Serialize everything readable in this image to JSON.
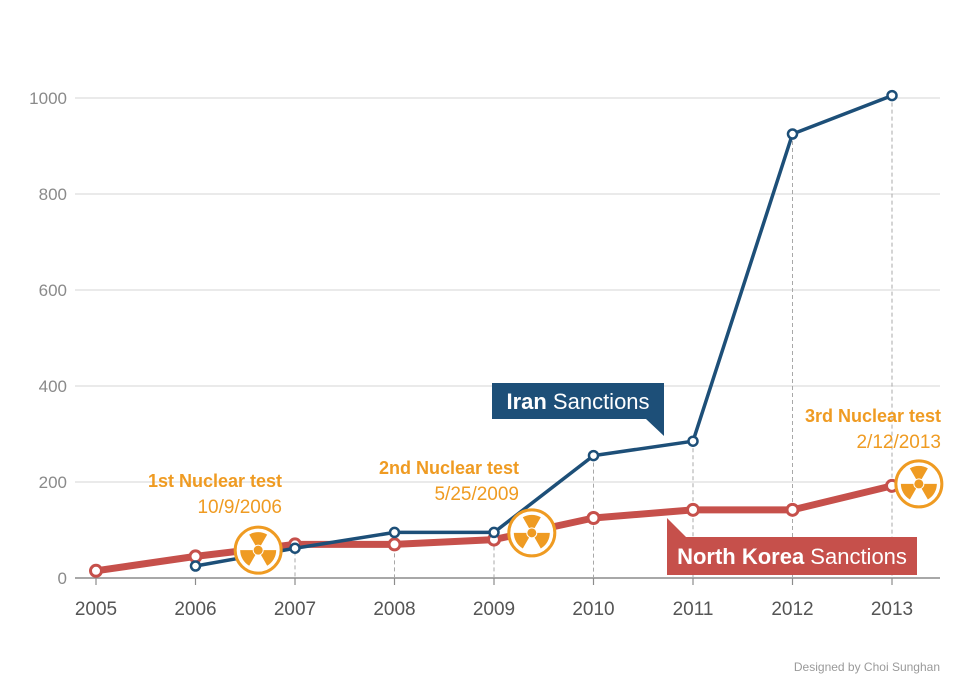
{
  "chart_data": {
    "type": "line",
    "x": [
      2005,
      2006,
      2007,
      2008,
      2009,
      2010,
      2011,
      2012,
      2013
    ],
    "xticks": [
      "2005",
      "2006",
      "2007",
      "2008",
      "2009",
      "2010",
      "2011",
      "2012",
      "2013"
    ],
    "yticks": [
      "0",
      "200",
      "400",
      "600",
      "800",
      "1000"
    ],
    "ylim": [
      0,
      1000
    ],
    "xlim": [
      2005,
      2013.5
    ],
    "grid": true,
    "series": [
      {
        "name_strong": "Iran",
        "name_rest": " Sanctions",
        "color": "#1d4f78",
        "points": [
          [
            2006,
            25
          ],
          [
            2007,
            62
          ],
          [
            2008,
            95
          ],
          [
            2009,
            95
          ],
          [
            2010,
            255
          ],
          [
            2011,
            285
          ],
          [
            2012,
            925
          ],
          [
            2013,
            1005
          ]
        ]
      },
      {
        "name_strong": "North Korea",
        "name_rest": " Sanctions",
        "color": "#c6504b",
        "points": [
          [
            2005,
            15
          ],
          [
            2006,
            45
          ],
          [
            2007,
            70
          ],
          [
            2008,
            70
          ],
          [
            2009,
            80
          ],
          [
            2010,
            125
          ],
          [
            2011,
            142
          ],
          [
            2012,
            142
          ],
          [
            2013,
            192
          ]
        ]
      }
    ],
    "annotations": [
      {
        "title": "1st Nuclear test",
        "date": "10/9/2006",
        "x": 2006.63,
        "y": 58
      },
      {
        "title": "2nd Nuclear test",
        "date": "5/25/2009",
        "x": 2009.38,
        "y": 94
      },
      {
        "title": "3rd Nuclear test",
        "date": "2/12/2013",
        "x": 2013.27,
        "y": 196
      }
    ],
    "credit": "Designed by Choi Sunghan"
  },
  "colors": {
    "iran": "#1d4f78",
    "north_korea": "#c6504b",
    "nuclear": "#ef9b22",
    "grid": "#d4d4d4"
  }
}
